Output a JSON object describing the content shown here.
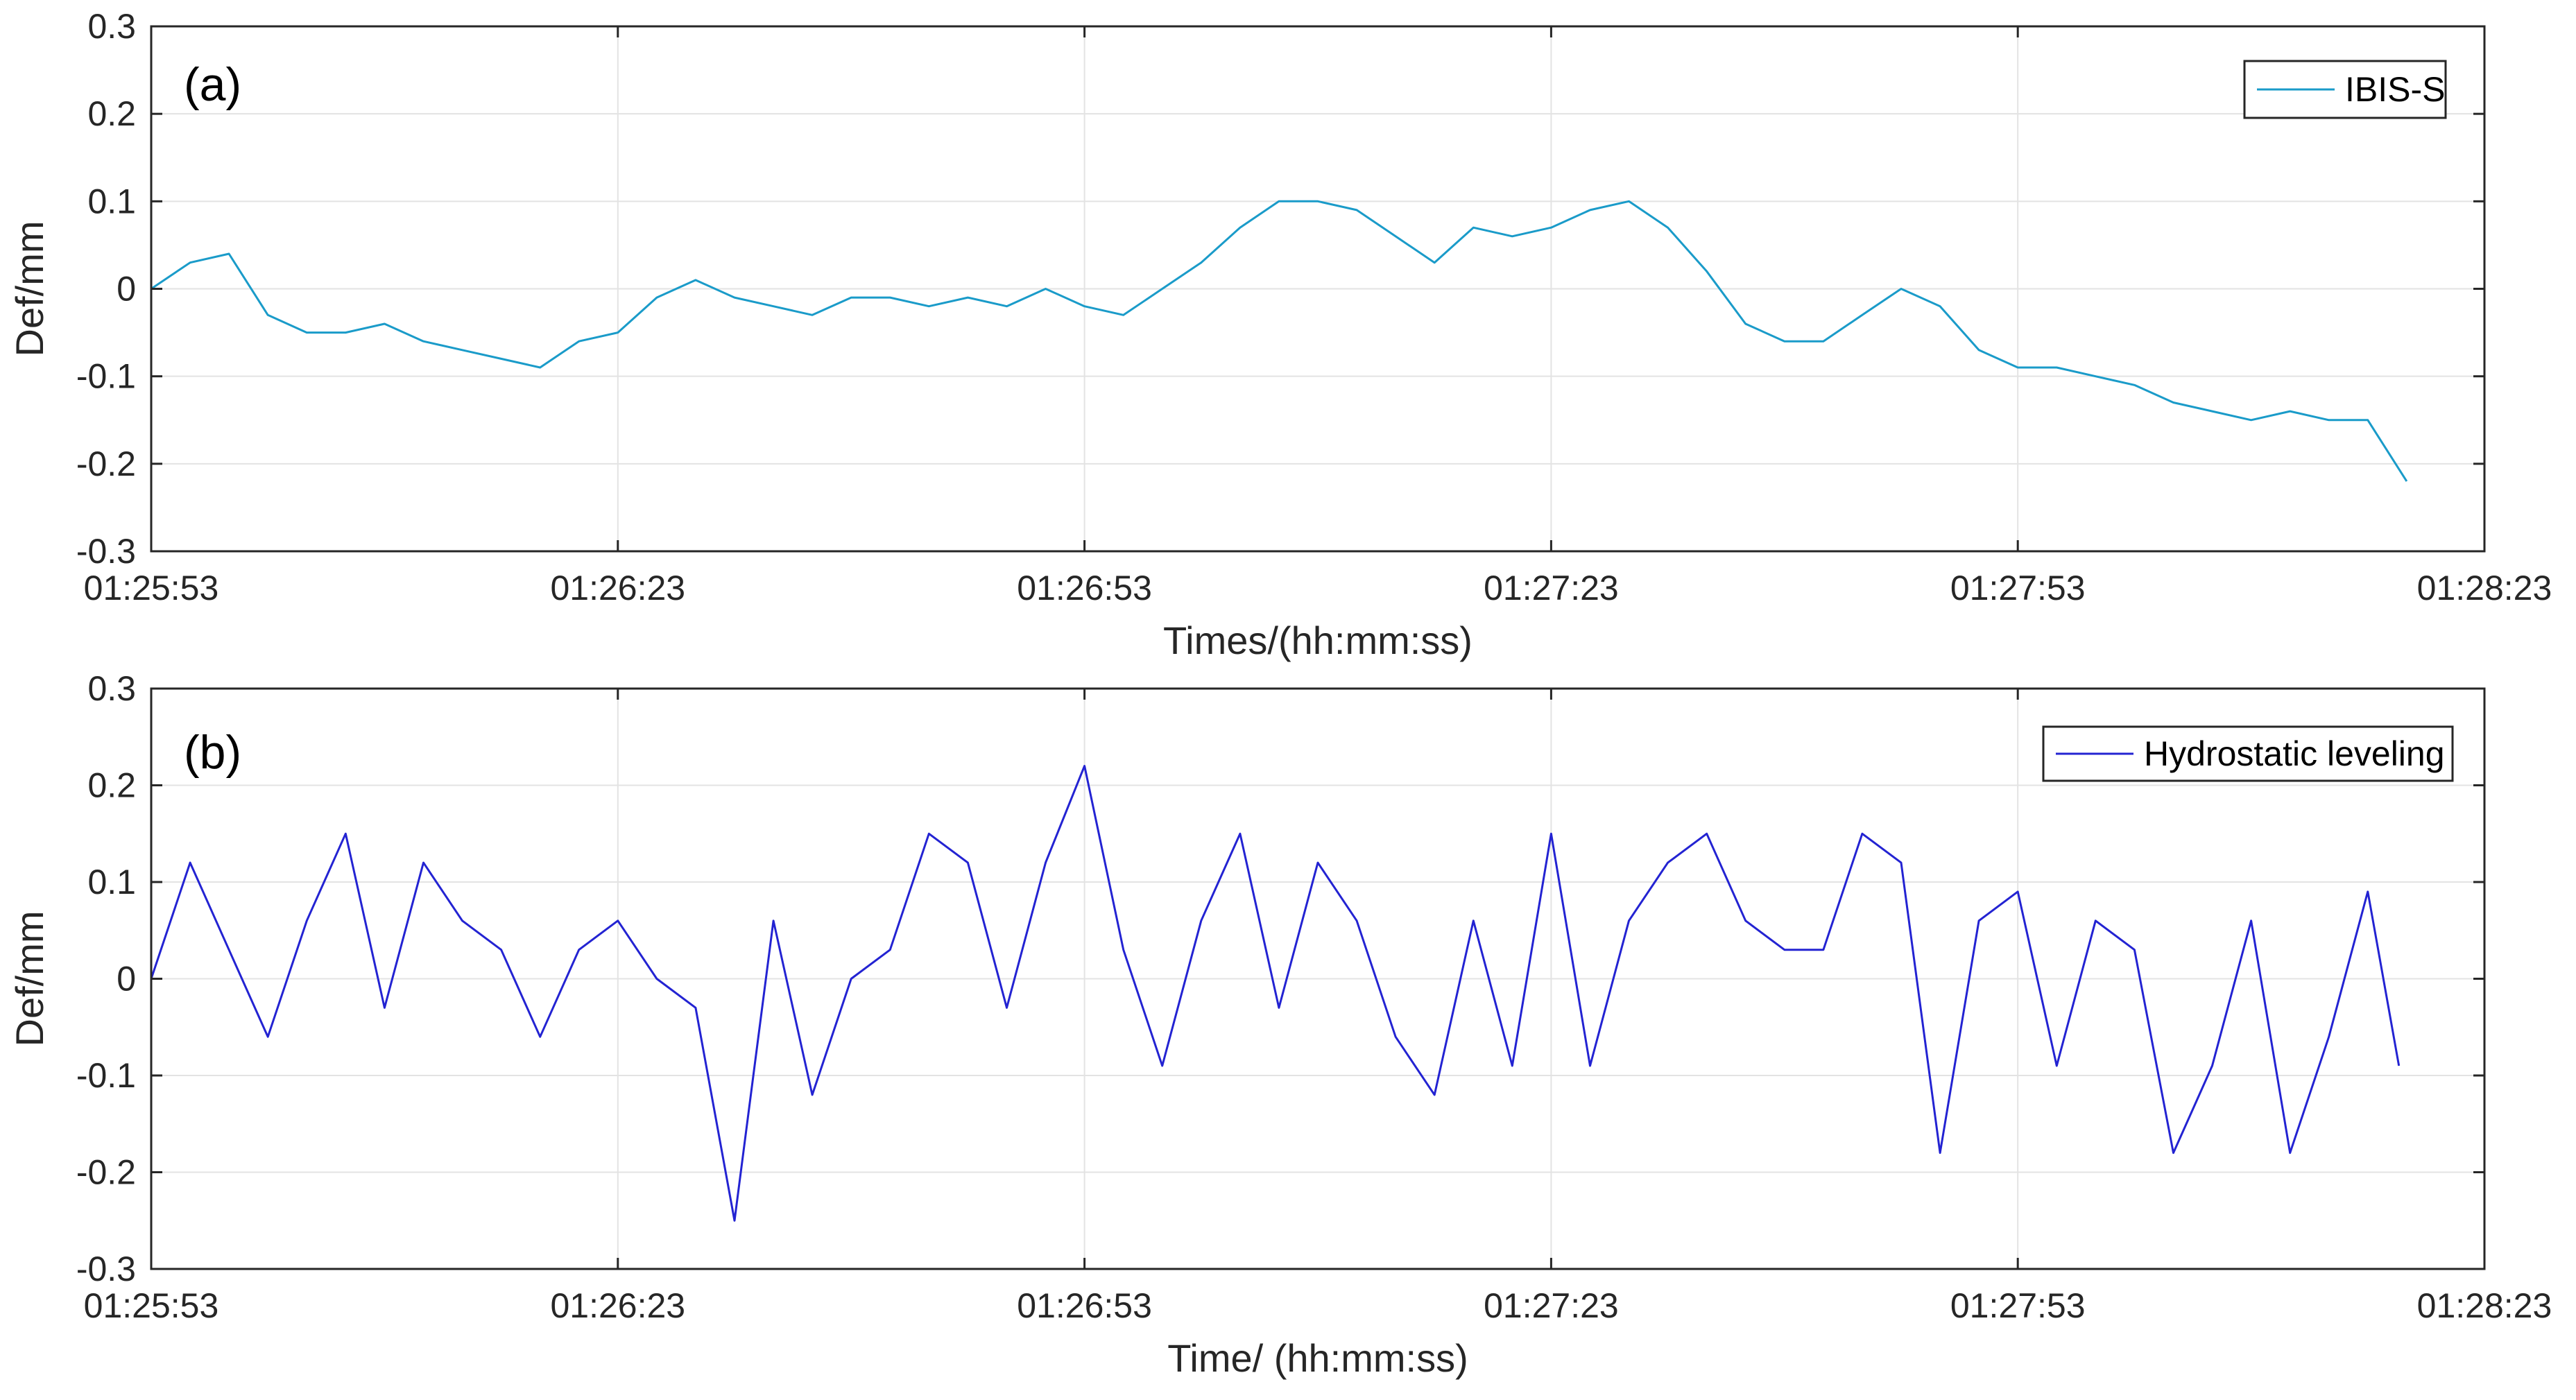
{
  "chart_data": [
    {
      "type": "line",
      "panel_label": "(a)",
      "xlabel": "Times/(hh:mm:ss)",
      "ylabel": "Def/mm",
      "ylim": [
        -0.3,
        0.3
      ],
      "yticks": [
        "0.3",
        "0.2",
        "0.1",
        "0",
        "-0.1",
        "-0.2",
        "-0.3"
      ],
      "xlim_seconds": [
        0,
        150
      ],
      "xticks": [
        "01:25:53",
        "01:26:23",
        "01:26:53",
        "01:27:23",
        "01:27:53",
        "01:28:23"
      ],
      "grid": true,
      "legend_position": "top-right",
      "series": [
        {
          "name": "IBIS-S",
          "color": "#1a9bc9",
          "x": [
            0,
            2.5,
            5,
            7.5,
            10,
            12.5,
            15,
            17.5,
            20,
            22.5,
            25,
            27.5,
            30,
            32.5,
            35,
            37.5,
            40,
            42.5,
            45,
            47.5,
            50,
            52.5,
            55,
            57.5,
            60,
            62.5,
            65,
            67.5,
            70,
            72.5,
            75,
            77.5,
            80,
            82.5,
            85,
            87.5,
            90,
            92.5,
            95,
            97.5,
            100,
            102.5,
            105,
            107.5,
            110,
            112.5,
            115,
            117.5,
            120,
            122.5,
            125,
            127.5,
            130,
            132.5,
            135,
            137.5,
            140,
            142.5,
            145
          ],
          "y": [
            0.0,
            0.03,
            0.04,
            -0.03,
            -0.05,
            -0.05,
            -0.04,
            -0.06,
            -0.07,
            -0.08,
            -0.09,
            -0.06,
            -0.05,
            -0.01,
            0.01,
            -0.01,
            -0.02,
            -0.03,
            -0.01,
            -0.01,
            -0.02,
            -0.01,
            -0.02,
            0.0,
            -0.02,
            -0.03,
            0.0,
            0.03,
            0.07,
            0.1,
            0.1,
            0.09,
            0.06,
            0.03,
            0.07,
            0.06,
            0.07,
            0.09,
            0.1,
            0.07,
            0.02,
            -0.04,
            -0.06,
            -0.06,
            -0.03,
            0.0,
            -0.02,
            -0.07,
            -0.09,
            -0.09,
            -0.1,
            -0.11,
            -0.13,
            -0.14,
            -0.15,
            -0.14,
            -0.15,
            -0.15,
            -0.22
          ]
        }
      ]
    },
    {
      "type": "line",
      "panel_label": "(b)",
      "xlabel": "Time/ (hh:mm:ss)",
      "ylabel": "Def/mm",
      "ylim": [
        -0.3,
        0.3
      ],
      "yticks": [
        "0.3",
        "0.2",
        "0.1",
        "0",
        "-0.1",
        "-0.2",
        "-0.3"
      ],
      "xlim_seconds": [
        0,
        150
      ],
      "xticks": [
        "01:25:53",
        "01:26:23",
        "01:26:53",
        "01:27:23",
        "01:27:53",
        "01:28:23"
      ],
      "grid": true,
      "legend_position": "top-right",
      "series": [
        {
          "name": "Hydrostatic leveling",
          "color": "#2323d2",
          "x": [
            0,
            2.5,
            5,
            7.5,
            10,
            12.5,
            15,
            17.5,
            20,
            22.5,
            25,
            27.5,
            30,
            32.5,
            35,
            37.5,
            40,
            42.5,
            45,
            47.5,
            50,
            52.5,
            55,
            57.5,
            60,
            62.5,
            65,
            67.5,
            70,
            72.5,
            75,
            77.5,
            80,
            82.5,
            85,
            87.5,
            90,
            92.5,
            95,
            97.5,
            100,
            102.5,
            105,
            107.5,
            110,
            112.5,
            115,
            117.5,
            120,
            122.5,
            125,
            127.5,
            130,
            132.5,
            135,
            137.5,
            140,
            142.5,
            144.5
          ],
          "y": [
            0.0,
            0.12,
            0.03,
            -0.06,
            0.06,
            0.15,
            -0.03,
            0.12,
            0.06,
            0.03,
            -0.06,
            0.03,
            0.06,
            0.0,
            -0.03,
            -0.25,
            0.06,
            -0.12,
            0.0,
            0.03,
            0.15,
            0.12,
            -0.03,
            0.12,
            0.22,
            0.03,
            -0.09,
            0.06,
            0.15,
            -0.03,
            0.12,
            0.06,
            -0.06,
            -0.12,
            0.06,
            -0.09,
            0.15,
            -0.09,
            0.06,
            0.12,
            0.15,
            0.06,
            0.03,
            0.03,
            0.15,
            0.12,
            -0.18,
            0.06,
            0.09,
            -0.09,
            0.06,
            0.03,
            -0.18,
            -0.09,
            0.06,
            -0.18,
            -0.06,
            0.09,
            -0.09
          ]
        }
      ]
    }
  ]
}
